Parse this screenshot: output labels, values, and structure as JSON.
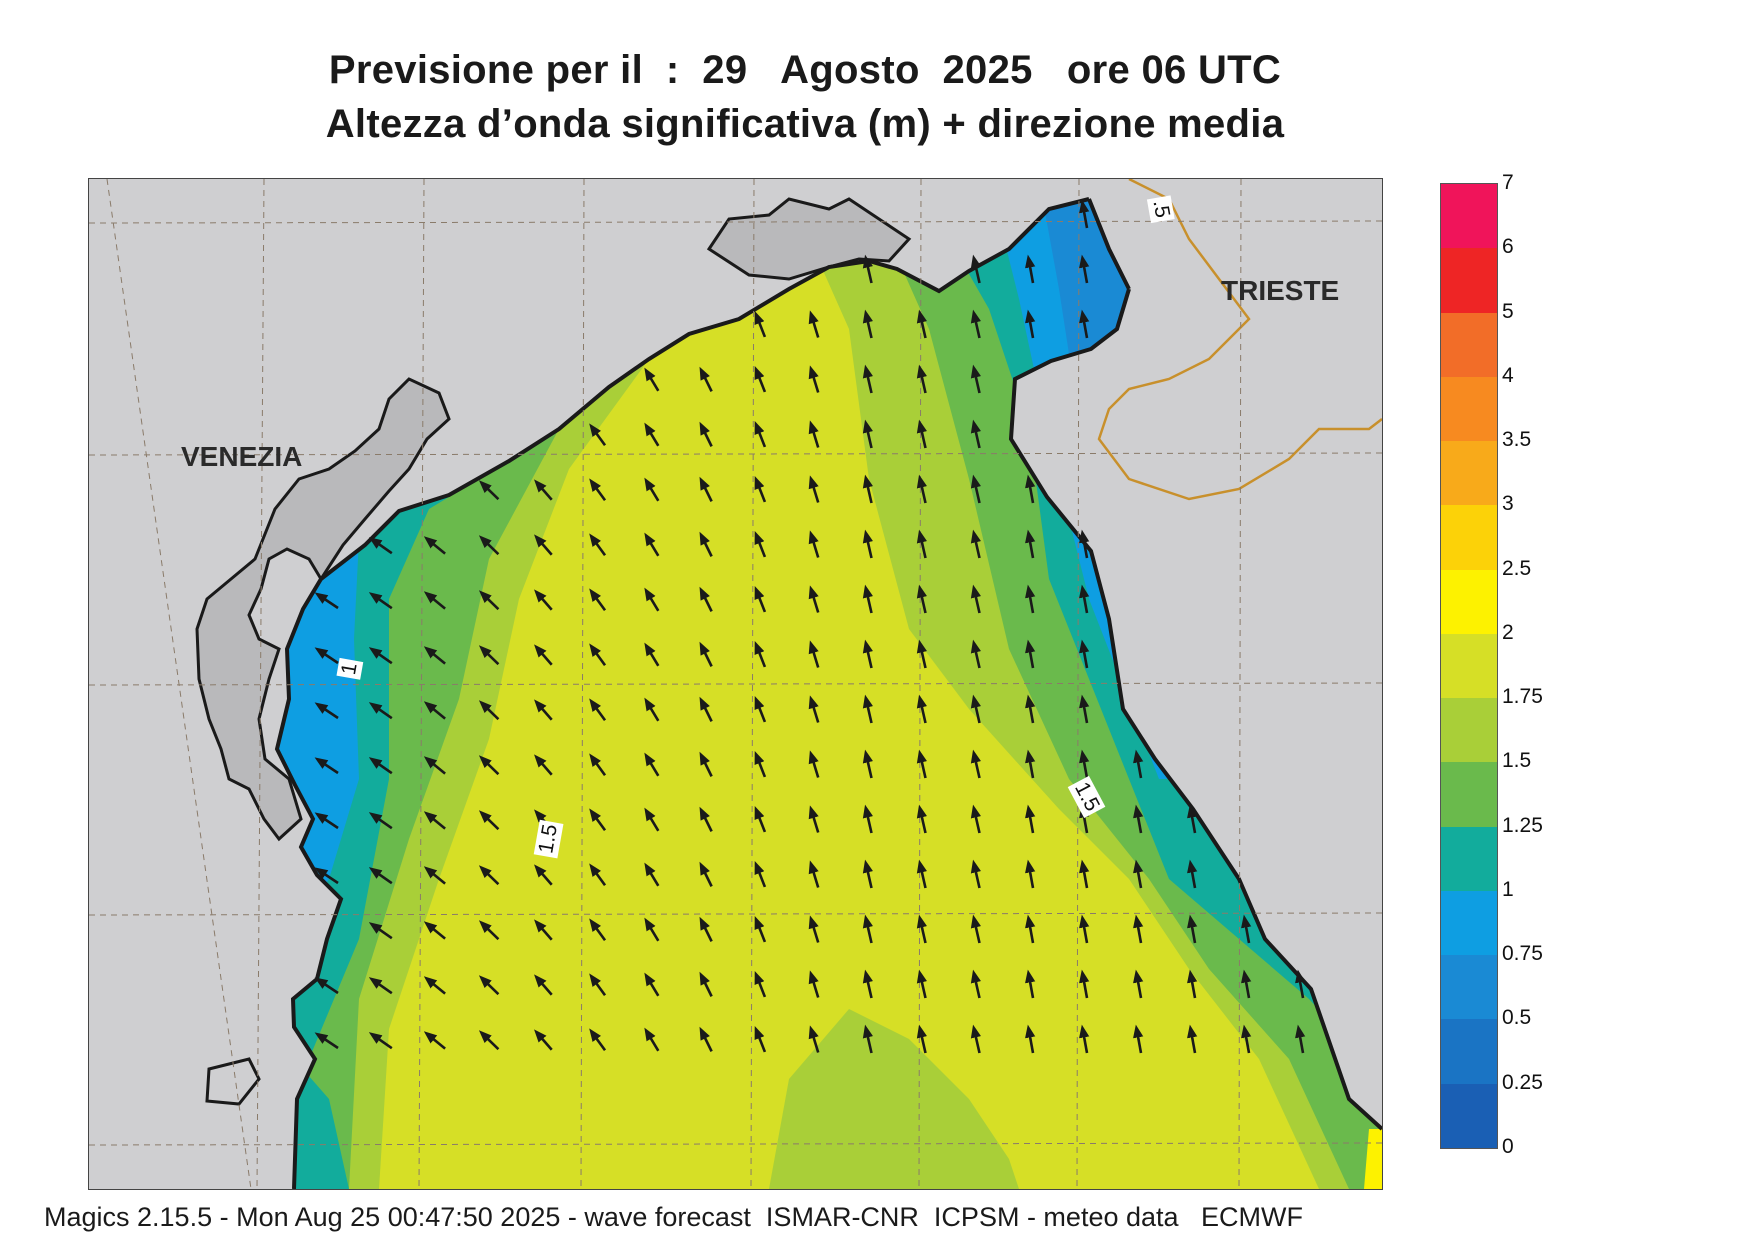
{
  "title": {
    "line1": "Previsione per il  :  29   Agosto  2025   ore 06 UTC",
    "line2": "Altezza d’onda significativa (m) + direzione media"
  },
  "map": {
    "labels": {
      "venezia": "VENEZIA",
      "trieste": "TRIESTE"
    },
    "contour_labels": [
      "1",
      "1.5",
      "1.5",
      ".5"
    ],
    "colors": {
      "land": "#cfcfd1",
      "coast_land": "#b9b9bb",
      "coast": "#1a1a1a",
      "border": "#c8902c",
      "grid": "#8a7b6a",
      "arrow": "#1a1a1a"
    }
  },
  "legend": {
    "labels": [
      "7",
      "6",
      "5",
      "4",
      "3.5",
      "3",
      "2.5",
      "2",
      "1.75",
      "1.5",
      "1.25",
      "1",
      "0.75",
      "0.5",
      "0.25",
      "0"
    ],
    "colors": [
      "#f0145a",
      "#ee2525",
      "#f26d28",
      "#f78a20",
      "#f8aa1a",
      "#fcd208",
      "#fdf200",
      "#d6df26",
      "#a9cf38",
      "#6aba4c",
      "#12ac9c",
      "#0e9ee2",
      "#1a8ad4",
      "#1a74c4",
      "#1a5fb4"
    ]
  },
  "footer": "Magics 2.15.5 - Mon Aug 25 00:47:50 2025 - wave forecast  ISMAR-CNR  ICPSM - meteo data   ECMWF"
}
